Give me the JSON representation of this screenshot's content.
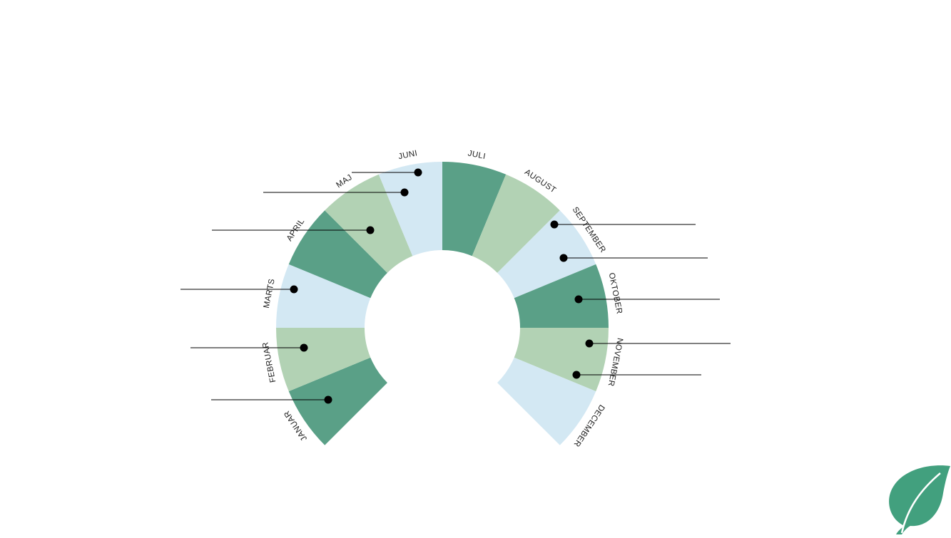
{
  "diagram": {
    "months": [
      {
        "label": "JANUAR",
        "color": "#5aa087"
      },
      {
        "label": "FEBRUAR",
        "color": "#b2d2b4"
      },
      {
        "label": "MARTS",
        "color": "#d3e8f3"
      },
      {
        "label": "APRIL",
        "color": "#5aa087"
      },
      {
        "label": "MAJ",
        "color": "#b2d2b4"
      },
      {
        "label": "JUNI",
        "color": "#d3e8f3"
      },
      {
        "label": "JULI",
        "color": "#5aa087"
      },
      {
        "label": "AUGUST",
        "color": "#b2d2b4"
      },
      {
        "label": "SEPTEMBER",
        "color": "#d3e8f3"
      },
      {
        "label": "OKTOBER",
        "color": "#5aa087"
      },
      {
        "label": "NOVEMBER",
        "color": "#b2d2b4"
      },
      {
        "label": "DECEMBER",
        "color": "#d3e8f3"
      }
    ],
    "callout_count": 12
  },
  "logo": {
    "icon": "leaf-icon",
    "color": "#42a07e"
  }
}
